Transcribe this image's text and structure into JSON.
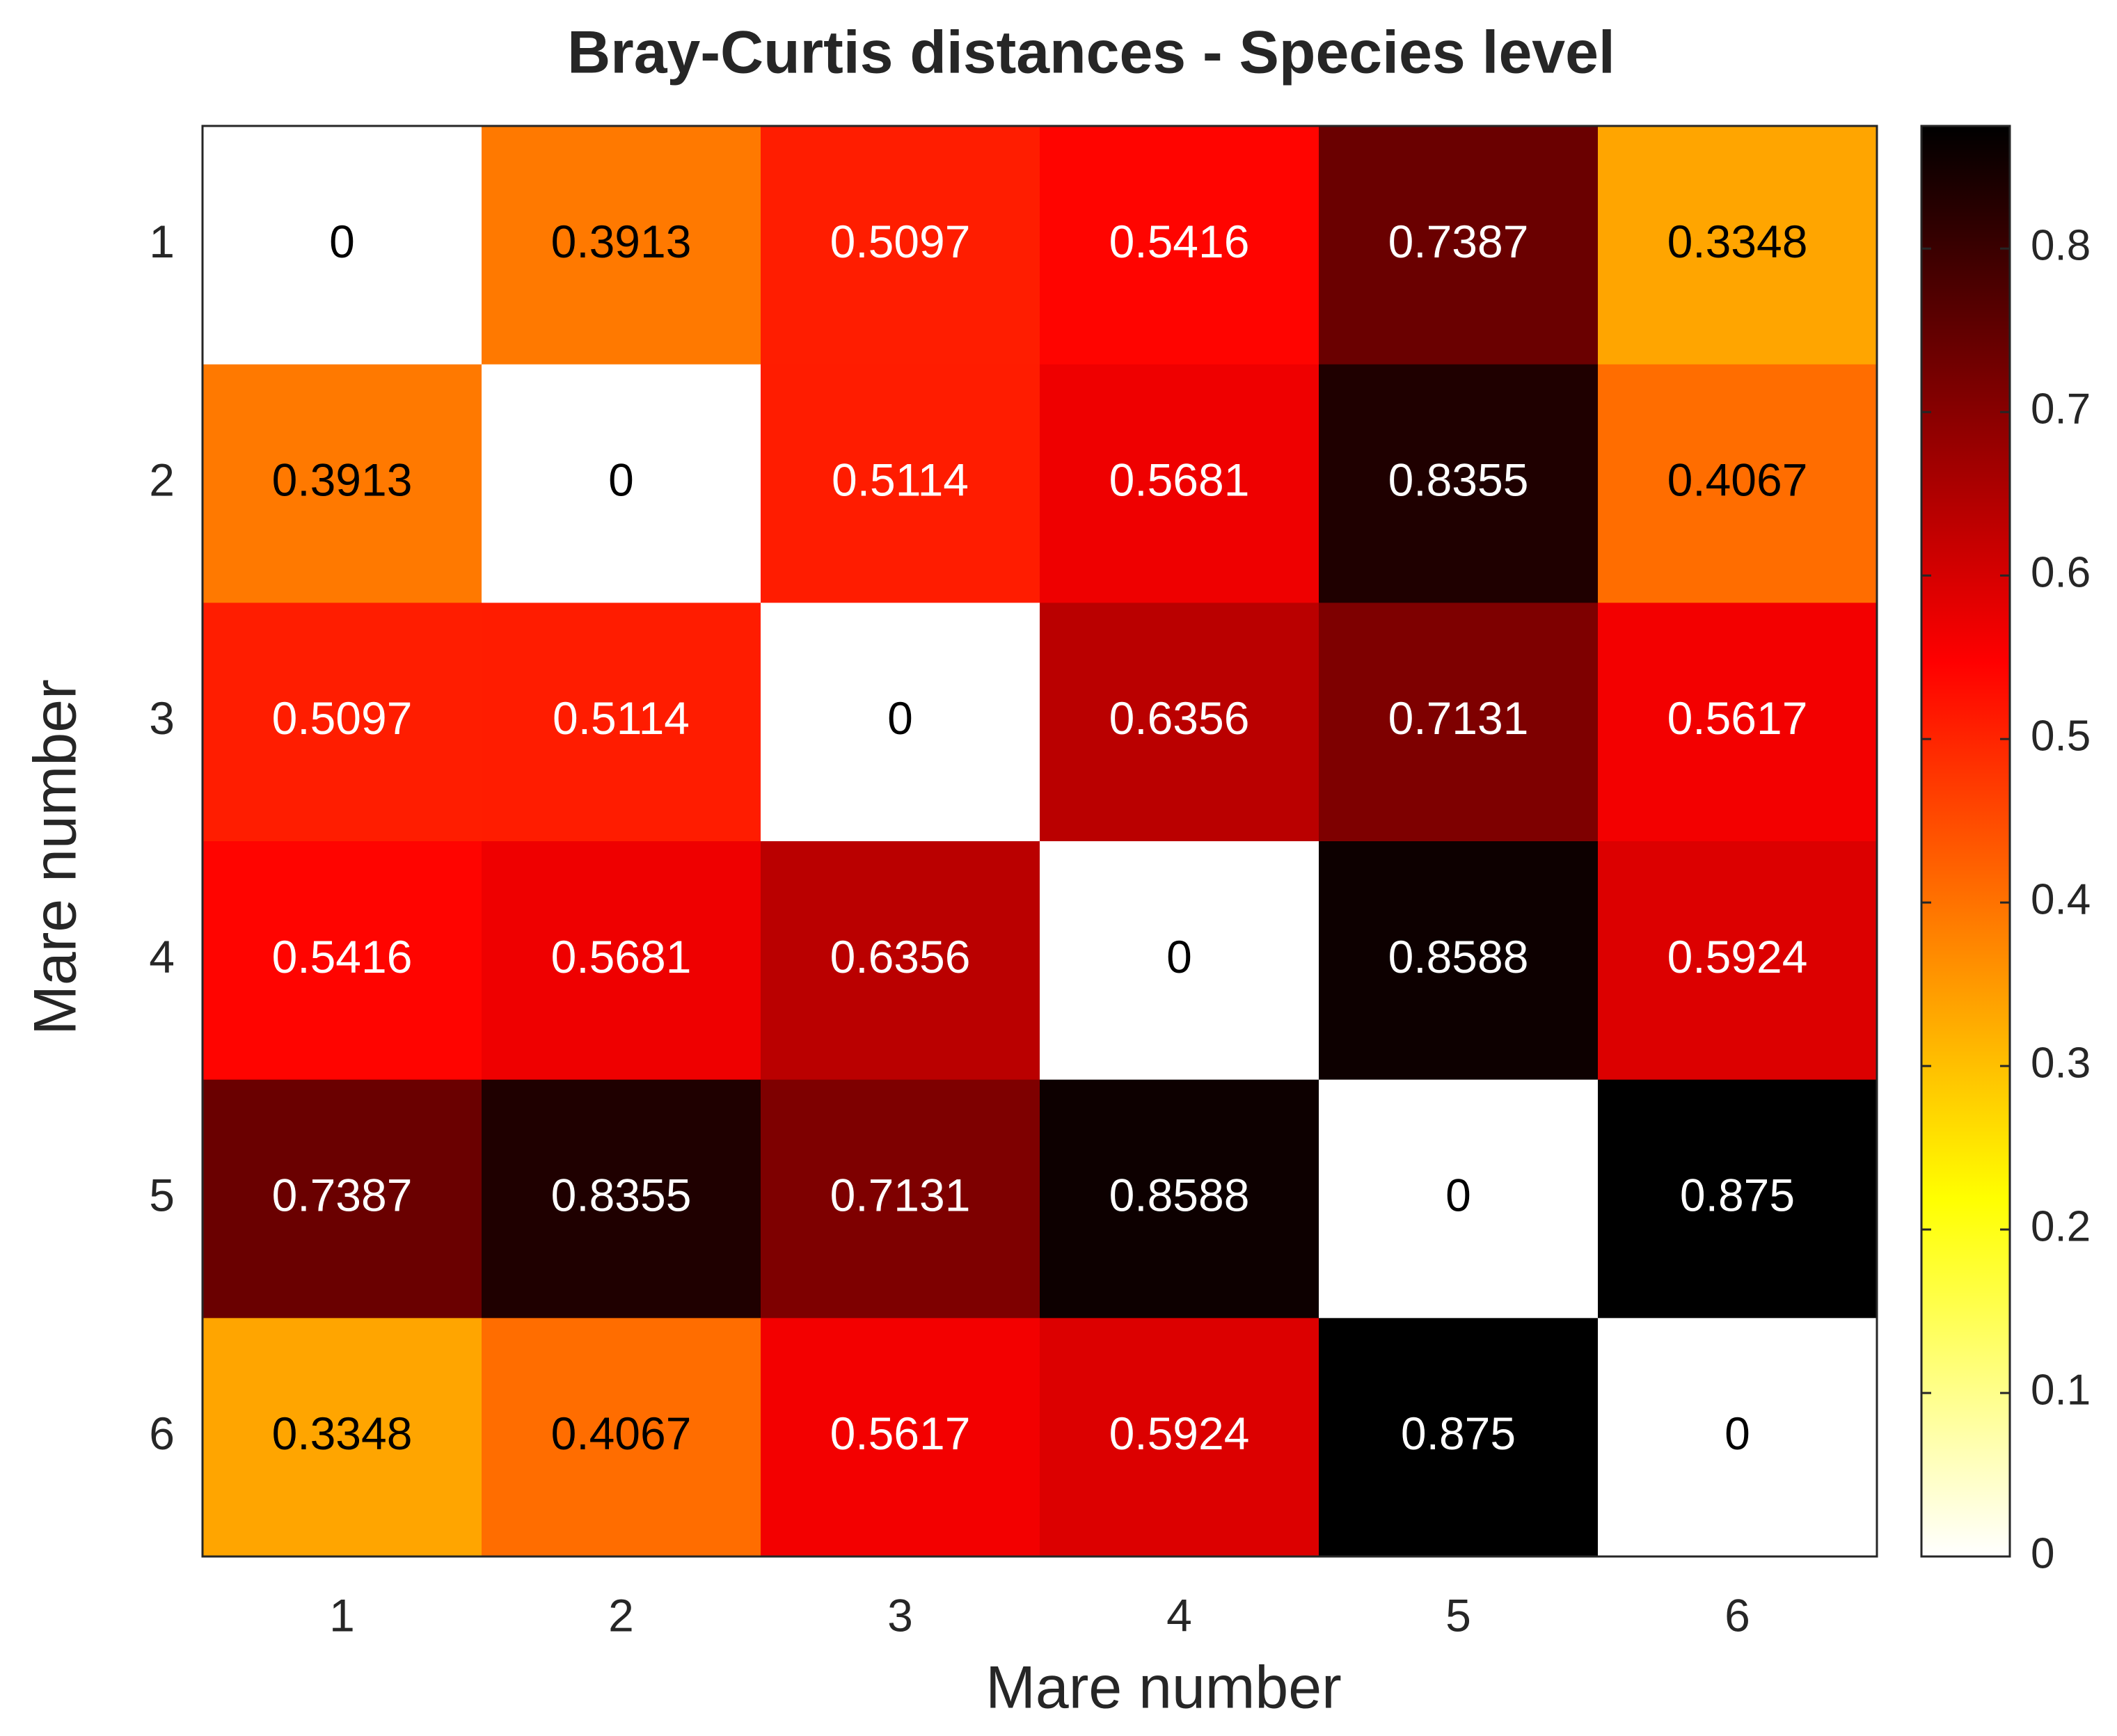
{
  "chart_data": {
    "type": "heatmap",
    "title": "Bray-Curtis distances - Species level",
    "xlabel": "Mare number",
    "ylabel": "Mare number",
    "xticks": [
      1,
      2,
      3,
      4,
      5,
      6
    ],
    "yticks": [
      1,
      2,
      3,
      4,
      5,
      6
    ],
    "xlim": [
      0.5,
      6.5
    ],
    "ylim": [
      0.5,
      6.5
    ],
    "values": [
      [
        0,
        0.3913,
        0.5097,
        0.5416,
        0.7387,
        0.3348
      ],
      [
        0.3913,
        0,
        0.5114,
        0.5681,
        0.8355,
        0.4067
      ],
      [
        0.5097,
        0.5114,
        0,
        0.6356,
        0.7131,
        0.5617
      ],
      [
        0.5416,
        0.5681,
        0.6356,
        0,
        0.8588,
        0.5924
      ],
      [
        0.7387,
        0.8355,
        0.7131,
        0.8588,
        0,
        0.875
      ],
      [
        0.3348,
        0.4067,
        0.5617,
        0.5924,
        0.875,
        0
      ]
    ],
    "colormap": "hot",
    "colormap_reversed": true,
    "clim": [
      0,
      0.875
    ],
    "cticks": [
      0,
      0.1,
      0.2,
      0.3,
      0.4,
      0.5,
      0.6,
      0.7,
      0.8
    ]
  }
}
